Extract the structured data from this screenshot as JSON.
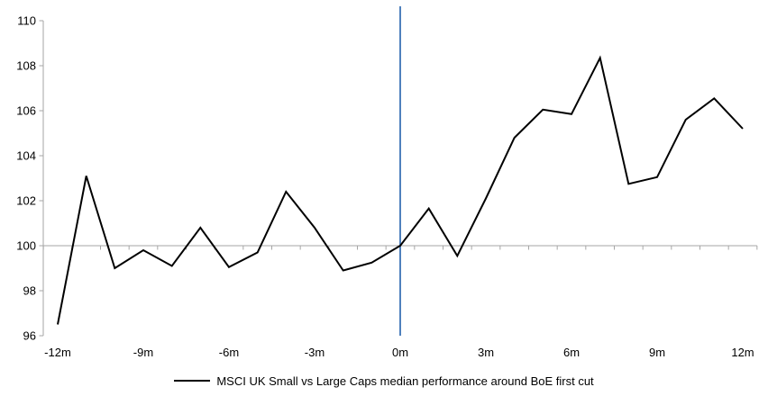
{
  "legend": {
    "label": "MSCI UK Small vs Large Caps median performance around BoE first cut"
  },
  "colors": {
    "line": "#000000",
    "axis": "#a6a6a6",
    "baseline": "#a6a6a6",
    "event_line": "#4f81bd",
    "text": "#000000"
  },
  "chart_data": {
    "type": "line",
    "title": "",
    "xlabel": "",
    "ylabel": "",
    "x": [
      -12,
      -11,
      -10,
      -9,
      -8,
      -7,
      -6,
      -5,
      -4,
      -3,
      -2,
      -1,
      0,
      1,
      2,
      3,
      4,
      5,
      6,
      7,
      8,
      9,
      10,
      11,
      12
    ],
    "series": [
      {
        "name": "MSCI UK Small vs Large Caps median performance around BoE first cut",
        "color": "#000000",
        "values": [
          96.5,
          103.1,
          99.0,
          99.8,
          99.1,
          100.8,
          99.05,
          99.7,
          102.4,
          100.8,
          98.9,
          99.25,
          100.0,
          101.65,
          99.55,
          102.1,
          104.8,
          106.05,
          105.85,
          108.35,
          102.75,
          103.05,
          105.6,
          106.55,
          105.2
        ]
      }
    ],
    "ylim": [
      96,
      110
    ],
    "y_ticks": [
      96,
      98,
      100,
      102,
      104,
      106,
      108,
      110
    ],
    "x_tick_months": [
      -12,
      -9,
      -6,
      -3,
      0,
      3,
      6,
      9,
      12
    ],
    "x_tick_labels": [
      "-12m",
      "-9m",
      "-6m",
      "-3m",
      "0m",
      "3m",
      "6m",
      "9m",
      "12m"
    ],
    "baseline_value": 100,
    "event_line_month": 0,
    "grid": false,
    "legend_position": "bottom"
  }
}
